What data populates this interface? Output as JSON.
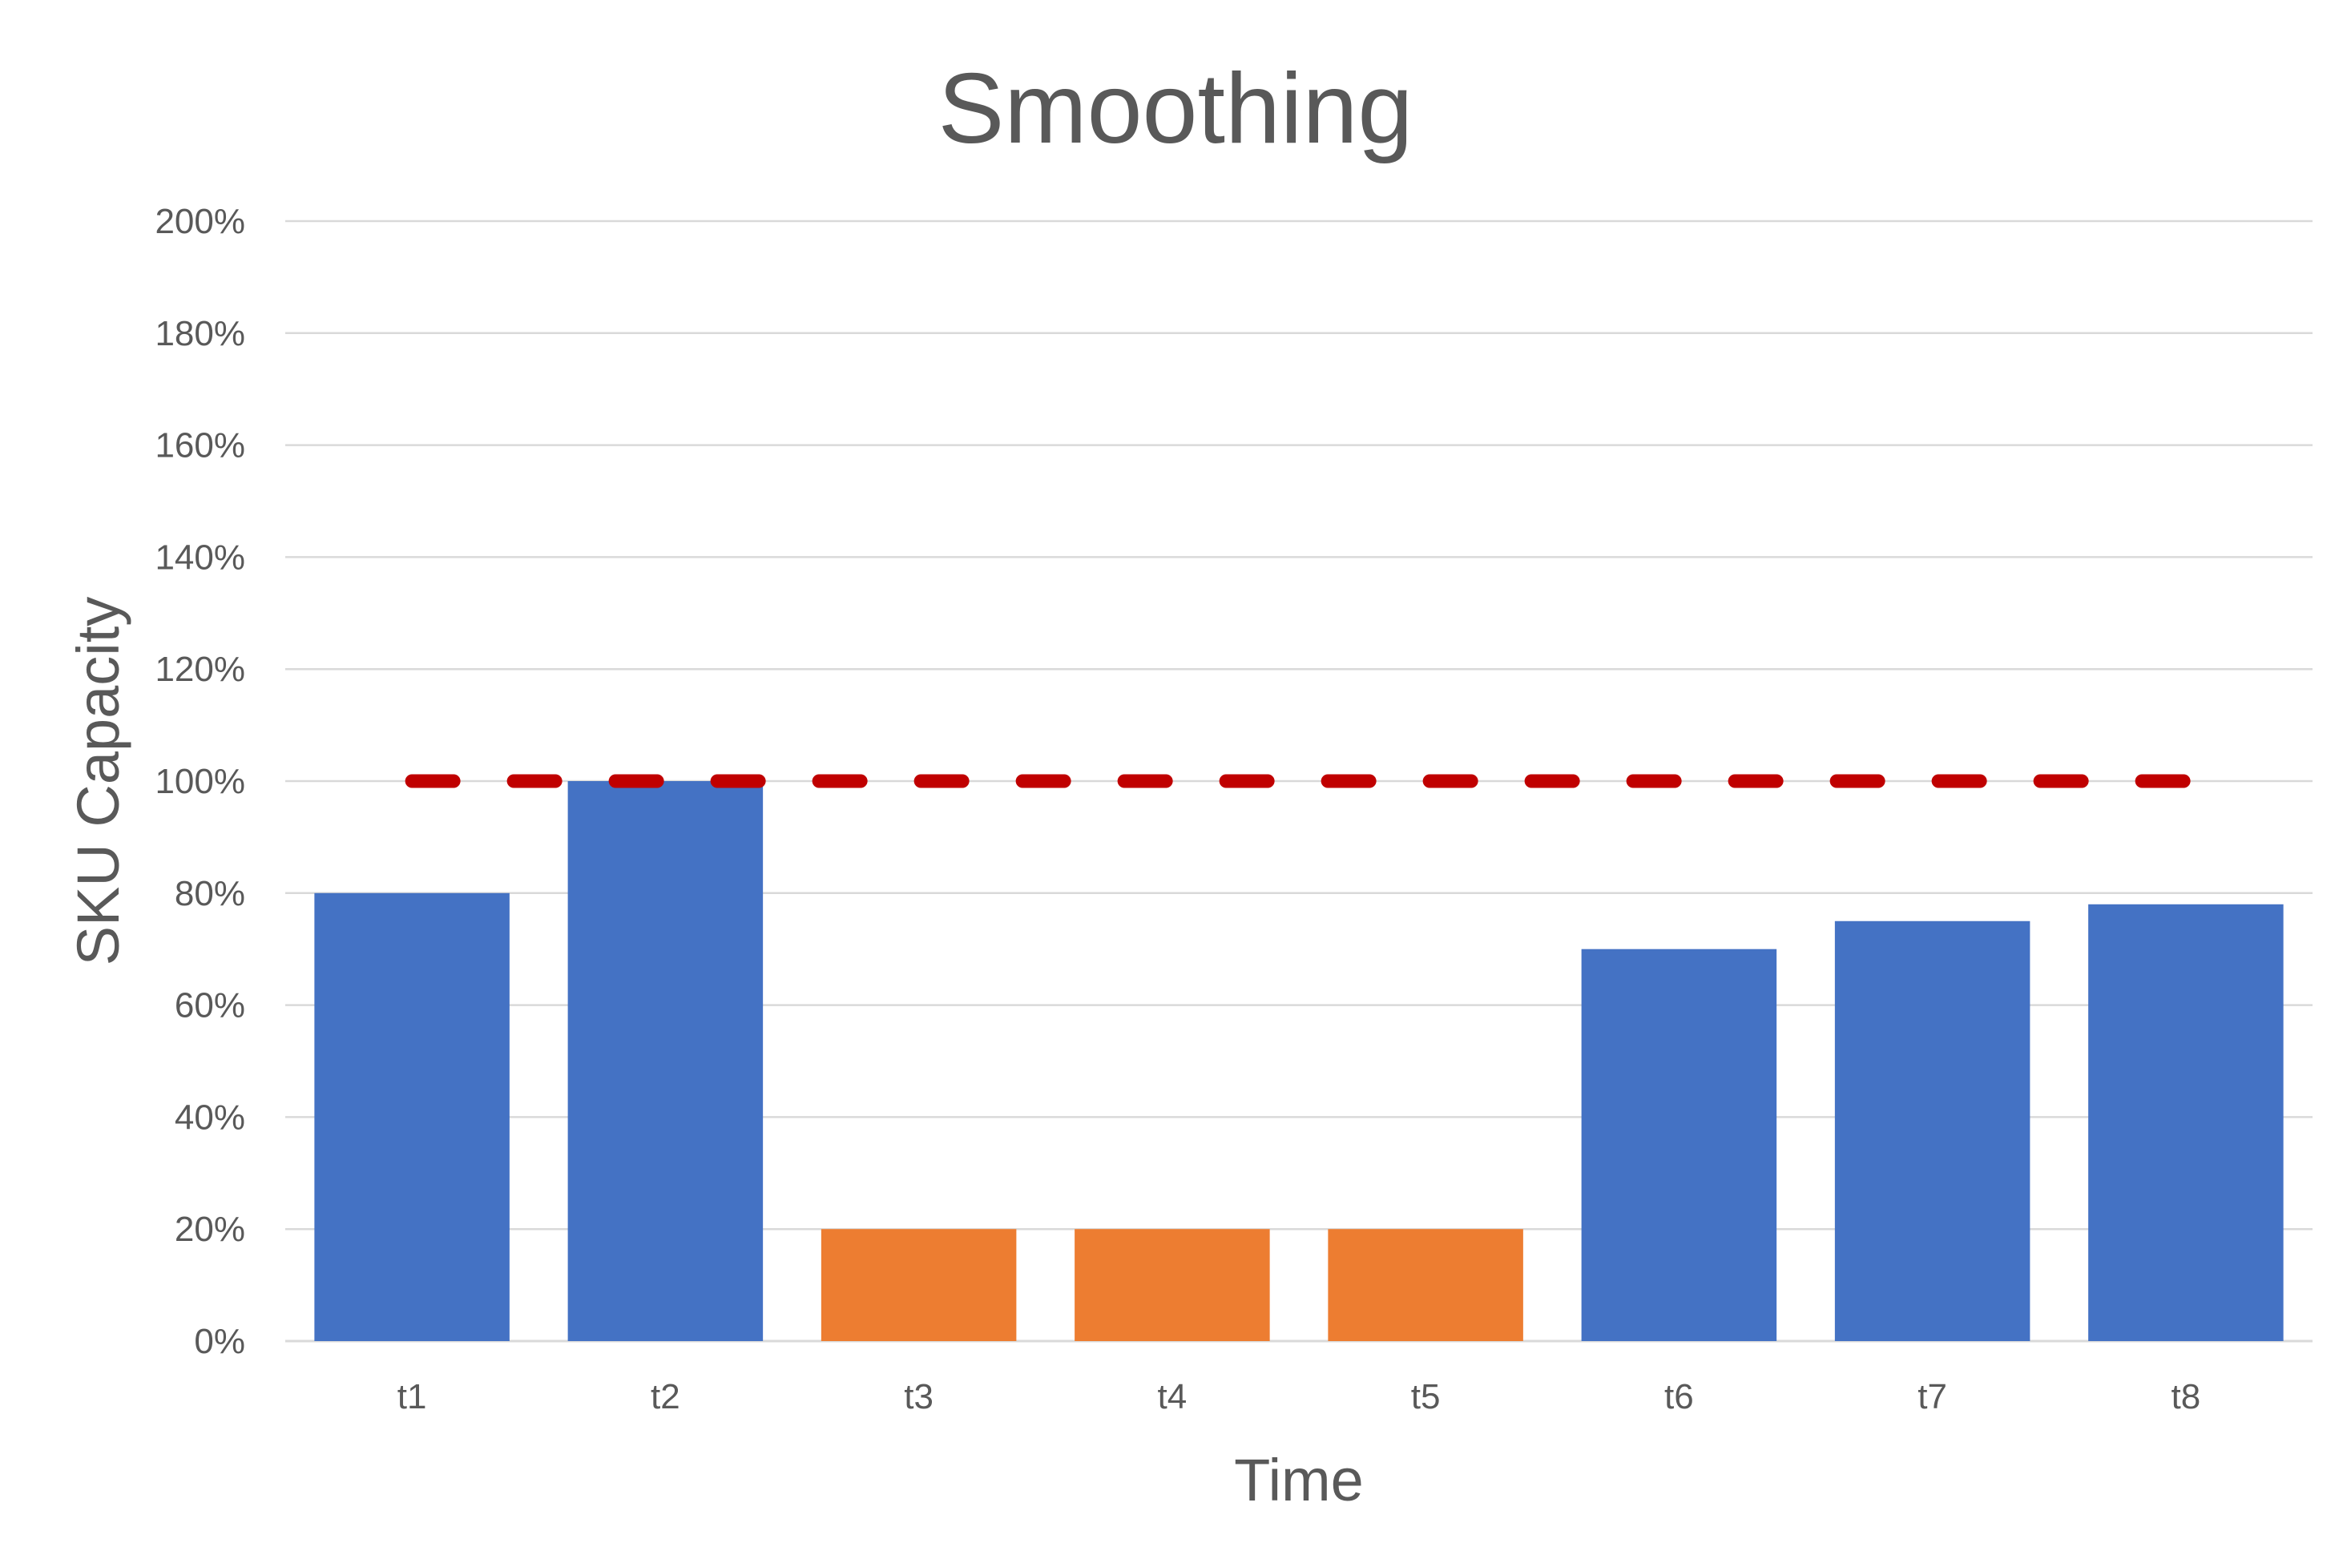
{
  "chart_data": {
    "type": "bar",
    "title": "Smoothing",
    "xlabel": "Time",
    "ylabel": "SKU Capacity",
    "categories": [
      "t1",
      "t2",
      "t3",
      "t4",
      "t5",
      "t6",
      "t7",
      "t8"
    ],
    "values": [
      80,
      100,
      20,
      20,
      20,
      70,
      75,
      78
    ],
    "bar_colors": [
      "#4472C4",
      "#4472C4",
      "#ED7D31",
      "#ED7D31",
      "#ED7D31",
      "#4472C4",
      "#4472C4",
      "#4472C4"
    ],
    "ylim": [
      0,
      200
    ],
    "y_ticks": [
      0,
      20,
      40,
      60,
      80,
      100,
      120,
      140,
      160,
      180,
      200
    ],
    "y_tick_labels": [
      "0%",
      "20%",
      "40%",
      "60%",
      "80%",
      "100%",
      "120%",
      "140%",
      "160%",
      "180%",
      "200%"
    ],
    "reference_line": {
      "value": 100,
      "style": "dashed",
      "color": "#C00000"
    },
    "grid": true,
    "legend": "none",
    "colors": {
      "text": "#595959",
      "grid": "#d9d9d9",
      "background": "#ffffff"
    }
  }
}
